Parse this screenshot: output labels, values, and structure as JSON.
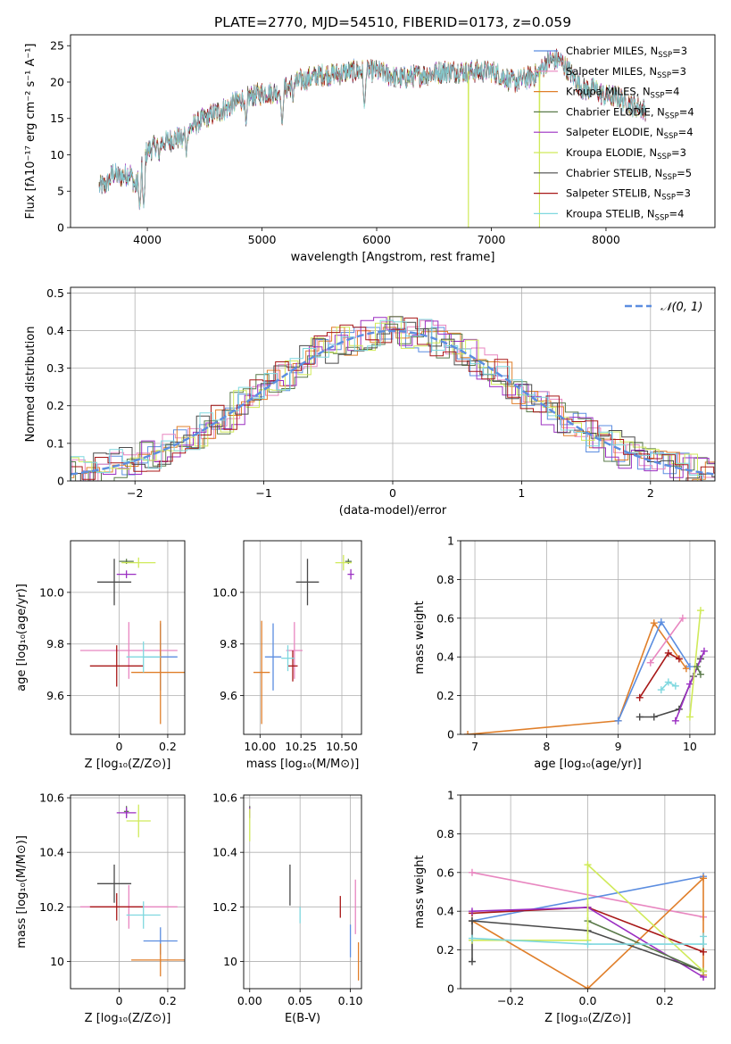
{
  "figure": {
    "title": "PLATE=2770, MJD=54510, FIBERID=0173, z=0.059"
  },
  "colors": {
    "cmiles": "#5b8de0",
    "smiles": "#e886c0",
    "kmiles": "#e07f2a",
    "celodie": "#5a7a4a",
    "selodie": "#9b2fc2",
    "kelodie": "#d0ea5a",
    "cstelib": "#4a4a4a",
    "sstelib": "#a81818",
    "kstelib": "#7fd8df"
  },
  "chart_data": [
    {
      "id": "spectrum",
      "type": "line",
      "xlabel": "wavelength [Angstrom, rest frame]",
      "ylabel": "Flux [fλ10⁻¹⁷ erg cm⁻² s⁻¹ A⁻¹]",
      "xlim": [
        3330,
        8950
      ],
      "ylim": [
        0,
        26.5
      ],
      "xticks": [
        4000,
        5000,
        6000,
        7000,
        8000
      ],
      "yticks": [
        0,
        5,
        10,
        15,
        20,
        25
      ],
      "grid": false,
      "legend": "top-right",
      "envelope": [
        [
          3580,
          5.5
        ],
        [
          3650,
          6
        ],
        [
          3700,
          7.5
        ],
        [
          3750,
          7
        ],
        [
          3800,
          7.2
        ],
        [
          3850,
          7.5
        ],
        [
          3900,
          5.5
        ],
        [
          3950,
          8.5
        ],
        [
          4000,
          10.5
        ],
        [
          4100,
          11.5
        ],
        [
          4200,
          12
        ],
        [
          4300,
          12.5
        ],
        [
          4400,
          14
        ],
        [
          4500,
          15
        ],
        [
          4600,
          15.8
        ],
        [
          4700,
          16.5
        ],
        [
          4800,
          17.5
        ],
        [
          4900,
          18
        ],
        [
          5000,
          18.5
        ],
        [
          5100,
          18.5
        ],
        [
          5200,
          19
        ],
        [
          5300,
          20
        ],
        [
          5400,
          20.5
        ],
        [
          5500,
          21
        ],
        [
          5600,
          21
        ],
        [
          5800,
          21.5
        ],
        [
          6000,
          21.5
        ],
        [
          6200,
          20.5
        ],
        [
          6400,
          21
        ],
        [
          6600,
          21.5
        ],
        [
          6800,
          21.5
        ],
        [
          7000,
          21.5
        ],
        [
          7200,
          20
        ],
        [
          7400,
          21
        ],
        [
          7500,
          23
        ],
        [
          7600,
          23
        ],
        [
          7700,
          21
        ],
        [
          7800,
          19
        ],
        [
          7900,
          19
        ],
        [
          8000,
          18
        ],
        [
          8100,
          18
        ],
        [
          8200,
          17
        ],
        [
          8300,
          16.5
        ],
        [
          8350,
          16
        ]
      ],
      "absorption": [
        [
          3933,
          2.5
        ],
        [
          3968,
          3
        ],
        [
          4102,
          9
        ],
        [
          4305,
          11
        ],
        [
          4340,
          10
        ],
        [
          4861,
          14
        ],
        [
          5175,
          14
        ],
        [
          5270,
          17
        ],
        [
          5893,
          16.5
        ]
      ],
      "drops": [
        [
          6800,
          0
        ],
        [
          7420,
          0
        ]
      ],
      "series": [
        {
          "name": "Chabrier MILES, N",
          "sub": "SSP",
          "suffix": "=3",
          "color": "cmiles"
        },
        {
          "name": "Salpeter MILES, N",
          "sub": "SSP",
          "suffix": "=3",
          "color": "smiles"
        },
        {
          "name": "Kroupa MILES, N",
          "sub": "SSP",
          "suffix": "=4",
          "color": "kmiles"
        },
        {
          "name": "Chabrier ELODIE, N",
          "sub": "SSP",
          "suffix": "=4",
          "color": "celodie"
        },
        {
          "name": "Salpeter ELODIE, N",
          "sub": "SSP",
          "suffix": "=4",
          "color": "selodie"
        },
        {
          "name": "Kroupa ELODIE, N",
          "sub": "SSP",
          "suffix": "=3",
          "color": "kelodie"
        },
        {
          "name": "Chabrier STELIB, N",
          "sub": "SSP",
          "suffix": "=5",
          "color": "cstelib"
        },
        {
          "name": "Salpeter STELIB, N",
          "sub": "SSP",
          "suffix": "=3",
          "color": "sstelib"
        },
        {
          "name": "Kroupa STELIB, N",
          "sub": "SSP",
          "suffix": "=4",
          "color": "kstelib"
        }
      ]
    },
    {
      "id": "residuals",
      "type": "bar",
      "xlabel": "(data-model)/error",
      "ylabel": "Normed distribution",
      "xlim": [
        -2.5,
        2.5
      ],
      "ylim": [
        0,
        0.515
      ],
      "xticks": [
        -2,
        -1,
        0,
        1,
        2
      ],
      "yticks": [
        0.0,
        0.1,
        0.2,
        0.3,
        0.4,
        0.5
      ],
      "grid": true,
      "legend": "top-right",
      "normal_label": "𝒩(0, 1)",
      "normal_color": "#5b8de0",
      "bin_width": 0.1
    },
    {
      "id": "age_vs_Z",
      "type": "scatter",
      "xlabel": "Z [log₁₀(Z/Z⊙)]",
      "ylabel": "age  [log₁₀(age/yr)]",
      "xlim": [
        -0.2,
        0.27
      ],
      "ylim": [
        9.45,
        10.2
      ],
      "xticks": [
        0.0,
        0.2
      ],
      "ytick_labels": [
        "9.6",
        "9.8",
        "10.0"
      ],
      "yticks": [
        9.6,
        9.8,
        10.0
      ],
      "grid": true,
      "points": [
        {
          "s": "cmiles",
          "x": 0.17,
          "xe": 0.07,
          "y": 9.75,
          "ye": 0.13
        },
        {
          "s": "smiles",
          "x": 0.04,
          "xe": 0.2,
          "y": 9.775,
          "ye": 0.11
        },
        {
          "s": "kmiles",
          "x": 0.17,
          "xe": 0.12,
          "y": 9.69,
          "ye": 0.2
        },
        {
          "s": "celodie",
          "x": 0.03,
          "xe": 0.03,
          "y": 10.12,
          "ye": 0.01
        },
        {
          "s": "selodie",
          "x": 0.03,
          "xe": 0.04,
          "y": 10.07,
          "ye": 0.015
        },
        {
          "s": "kelodie",
          "x": 0.08,
          "xe": 0.07,
          "y": 10.115,
          "ye": 0.02
        },
        {
          "s": "cstelib",
          "x": -0.02,
          "xe": 0.07,
          "y": 10.04,
          "ye": 0.09
        },
        {
          "s": "sstelib",
          "x": -0.01,
          "xe": 0.11,
          "y": 9.715,
          "ye": 0.08
        },
        {
          "s": "kstelib",
          "x": 0.1,
          "xe": 0.07,
          "y": 9.75,
          "ye": 0.06
        }
      ]
    },
    {
      "id": "age_vs_mass",
      "type": "scatter",
      "xlabel": "mass [log₁₀(M/M⊙)]",
      "ylabel": "",
      "xlim": [
        9.9,
        10.62
      ],
      "ylim": [
        9.45,
        10.2
      ],
      "xticks": [
        10.0,
        10.25,
        10.5
      ],
      "xtick_labels": [
        "10.00",
        "10.25",
        "10.50"
      ],
      "yticks": [
        9.6,
        9.8,
        10.0
      ],
      "ytick_labels": [
        "9.6",
        "9.8",
        "10.0"
      ],
      "grid": true,
      "points": [
        {
          "s": "cmiles",
          "x": 10.08,
          "xe": 0.05,
          "y": 9.75,
          "ye": 0.13
        },
        {
          "s": "smiles",
          "x": 10.21,
          "xe": 0.05,
          "y": 9.775,
          "ye": 0.11
        },
        {
          "s": "kmiles",
          "x": 10.01,
          "xe": 0.05,
          "y": 9.69,
          "ye": 0.2
        },
        {
          "s": "celodie",
          "x": 10.54,
          "xe": 0.02,
          "y": 10.12,
          "ye": 0.01
        },
        {
          "s": "selodie",
          "x": 10.555,
          "xe": 0.02,
          "y": 10.07,
          "ye": 0.02
        },
        {
          "s": "kelodie",
          "x": 10.51,
          "xe": 0.05,
          "y": 10.115,
          "ye": 0.03
        },
        {
          "s": "cstelib",
          "x": 10.29,
          "xe": 0.07,
          "y": 10.04,
          "ye": 0.09
        },
        {
          "s": "sstelib",
          "x": 10.2,
          "xe": 0.03,
          "y": 9.715,
          "ye": 0.06
        },
        {
          "s": "kstelib",
          "x": 10.17,
          "xe": 0.04,
          "y": 9.745,
          "ye": 0.05
        }
      ]
    },
    {
      "id": "massweight_vs_age",
      "type": "line",
      "xlabel": "age  [log₁₀(age/yr)]",
      "ylabel": "mass weight",
      "xlim": [
        6.8,
        10.35
      ],
      "ylim": [
        0,
        1
      ],
      "xticks": [
        7,
        8,
        9,
        10
      ],
      "yticks": [
        0.0,
        0.2,
        0.4,
        0.6,
        0.8,
        1.0
      ],
      "grid": true,
      "series": [
        {
          "s": "kmiles",
          "pts": [
            [
              6.9,
              0.0
            ],
            [
              9.0,
              0.07
            ],
            [
              9.5,
              0.575
            ],
            [
              9.95,
              0.34
            ]
          ]
        },
        {
          "s": "cmiles",
          "pts": [
            [
              9.0,
              0.07
            ],
            [
              9.6,
              0.58
            ],
            [
              10.0,
              0.35
            ]
          ]
        },
        {
          "s": "smiles",
          "pts": [
            [
              9.45,
              0.37
            ],
            [
              9.9,
              0.6
            ]
          ]
        },
        {
          "s": "sstelib",
          "pts": [
            [
              9.3,
              0.19
            ],
            [
              9.7,
              0.42
            ],
            [
              9.85,
              0.39
            ]
          ]
        },
        {
          "s": "cstelib",
          "pts": [
            [
              9.3,
              0.09
            ],
            [
              9.5,
              0.09
            ],
            [
              9.85,
              0.13
            ],
            [
              10.05,
              0.3
            ],
            [
              10.15,
              0.39
            ]
          ]
        },
        {
          "s": "selodie",
          "pts": [
            [
              9.8,
              0.07
            ],
            [
              10.0,
              0.26
            ],
            [
              10.2,
              0.43
            ]
          ]
        },
        {
          "s": "kelodie",
          "pts": [
            [
              10.0,
              0.09
            ],
            [
              10.15,
              0.64
            ]
          ]
        },
        {
          "s": "celodie",
          "pts": [
            [
              10.1,
              0.35
            ],
            [
              10.15,
              0.31
            ]
          ]
        },
        {
          "s": "kstelib",
          "pts": [
            [
              9.6,
              0.23
            ],
            [
              9.7,
              0.27
            ],
            [
              9.8,
              0.25
            ]
          ]
        }
      ]
    },
    {
      "id": "mass_vs_Z",
      "type": "scatter",
      "xlabel": "Z [log₁₀(Z/Z⊙)]",
      "ylabel": "mass [log₁₀(M/M⊙)]",
      "xlim": [
        -0.2,
        0.27
      ],
      "ylim": [
        9.9,
        10.61
      ],
      "xticks": [
        0.0,
        0.2
      ],
      "yticks": [
        10.0,
        10.2,
        10.4,
        10.6
      ],
      "grid": true,
      "points": [
        {
          "s": "cmiles",
          "x": 0.17,
          "xe": 0.07,
          "y": 10.075,
          "ye": 0.05
        },
        {
          "s": "smiles",
          "x": 0.04,
          "xe": 0.2,
          "y": 10.2,
          "ye": 0.08
        },
        {
          "s": "kmiles",
          "x": 0.17,
          "xe": 0.12,
          "y": 10.005,
          "ye": 0.06
        },
        {
          "s": "celodie",
          "x": 0.03,
          "xe": 0.01,
          "y": 10.55,
          "ye": 0.02
        },
        {
          "s": "selodie",
          "x": 0.03,
          "xe": 0.04,
          "y": 10.545,
          "ye": 0.02
        },
        {
          "s": "kelodie",
          "x": 0.08,
          "xe": 0.05,
          "y": 10.515,
          "ye": 0.06
        },
        {
          "s": "cstelib",
          "x": -0.02,
          "xe": 0.07,
          "y": 10.285,
          "ye": 0.07
        },
        {
          "s": "sstelib",
          "x": -0.01,
          "xe": 0.11,
          "y": 10.2,
          "ye": 0.05
        },
        {
          "s": "kstelib",
          "x": 0.1,
          "xe": 0.07,
          "y": 10.17,
          "ye": 0.05
        }
      ]
    },
    {
      "id": "mass_vs_ebv",
      "type": "scatter",
      "xlabel": "E(B-V)",
      "ylabel": "",
      "xlim": [
        -0.006,
        0.111
      ],
      "ylim": [
        9.9,
        10.61
      ],
      "xticks": [
        0.0,
        0.05,
        0.1
      ],
      "xtick_labels": [
        "0.00",
        "0.05",
        "0.10"
      ],
      "yticks": [
        10.0,
        10.2,
        10.4,
        10.6
      ],
      "grid": true,
      "points": [
        {
          "s": "cmiles",
          "x": 0.1,
          "xe": 0,
          "y": 10.075,
          "ye": 0.06
        },
        {
          "s": "smiles",
          "x": 0.105,
          "xe": 0,
          "y": 10.2,
          "ye": 0.1
        },
        {
          "s": "kmiles",
          "x": 0.108,
          "xe": 0,
          "y": 10.0,
          "ye": 0.07
        },
        {
          "s": "celodie",
          "x": 0.0,
          "xe": 0,
          "y": 10.55,
          "ye": 0.02
        },
        {
          "s": "selodie",
          "x": 0.0,
          "xe": 0,
          "y": 10.545,
          "ye": 0.02
        },
        {
          "s": "kelodie",
          "x": 0.0,
          "xe": 0,
          "y": 10.5,
          "ye": 0.06
        },
        {
          "s": "cstelib",
          "x": 0.04,
          "xe": 0,
          "y": 10.28,
          "ye": 0.075
        },
        {
          "s": "sstelib",
          "x": 0.09,
          "xe": 0,
          "y": 10.2,
          "ye": 0.04
        },
        {
          "s": "kstelib",
          "x": 0.05,
          "xe": 0,
          "y": 10.17,
          "ye": 0.03
        }
      ]
    },
    {
      "id": "massweight_vs_Z",
      "type": "line",
      "xlabel": "Z [log₁₀(Z/Z⊙)]",
      "ylabel": "mass weight",
      "xlim": [
        -0.33,
        0.33
      ],
      "ylim": [
        0,
        1
      ],
      "xticks": [
        -0.2,
        0.0,
        0.2
      ],
      "xtick_labels": [
        "−0.2",
        "0.0",
        "0.2"
      ],
      "yticks": [
        0.0,
        0.2,
        0.4,
        0.6,
        0.8,
        1.0
      ],
      "grid": true,
      "series": [
        {
          "s": "smiles",
          "pts": [
            [
              -0.3,
              0.6
            ],
            [
              0.3,
              0.37
            ]
          ]
        },
        {
          "s": "cmiles",
          "pts": [
            [
              -0.3,
              0.35
            ],
            [
              0.3,
              0.58
            ]
          ]
        },
        {
          "s": "kmiles",
          "pts": [
            [
              -0.3,
              0.35
            ],
            [
              0.0,
              0.0
            ],
            [
              0.3,
              0.57
            ],
            [
              0.3,
              0.07
            ]
          ]
        },
        {
          "s": "sstelib",
          "pts": [
            [
              -0.3,
              0.39
            ],
            [
              0.0,
              0.42
            ],
            [
              0.3,
              0.19
            ]
          ]
        },
        {
          "s": "selodie",
          "pts": [
            [
              -0.3,
              0.4
            ],
            [
              0.0,
              0.42
            ],
            [
              0.3,
              0.06
            ]
          ]
        },
        {
          "s": "cstelib",
          "pts": [
            [
              -0.3,
              0.14
            ],
            [
              -0.3,
              0.35
            ],
            [
              0.0,
              0.3
            ],
            [
              0.3,
              0.09
            ]
          ]
        },
        {
          "s": "celodie",
          "pts": [
            [
              0.0,
              0.35
            ],
            [
              0.3,
              0.09
            ]
          ]
        },
        {
          "s": "kelodie",
          "pts": [
            [
              -0.3,
              0.25
            ],
            [
              0.0,
              0.25
            ],
            [
              0.0,
              0.64
            ],
            [
              0.3,
              0.09
            ]
          ]
        },
        {
          "s": "kstelib",
          "pts": [
            [
              -0.3,
              0.26
            ],
            [
              0.0,
              0.23
            ],
            [
              0.3,
              0.23
            ],
            [
              0.3,
              0.27
            ]
          ]
        }
      ]
    }
  ]
}
